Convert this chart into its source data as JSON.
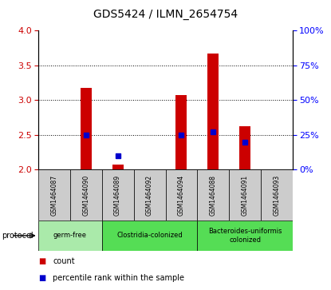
{
  "title": "GDS5424 / ILMN_2654754",
  "samples": [
    "GSM1464087",
    "GSM1464090",
    "GSM1464089",
    "GSM1464092",
    "GSM1464094",
    "GSM1464088",
    "GSM1464091",
    "GSM1464093"
  ],
  "counts": [
    null,
    3.17,
    2.07,
    null,
    3.07,
    3.67,
    2.62,
    null
  ],
  "percentile_ranks": [
    null,
    25,
    10,
    null,
    25,
    27,
    20,
    null
  ],
  "ylim": [
    2.0,
    4.0
  ],
  "yticks_left": [
    2.0,
    2.5,
    3.0,
    3.5,
    4.0
  ],
  "yticks_right": [
    0,
    25,
    50,
    75,
    100
  ],
  "bar_color": "#cc0000",
  "dot_color": "#0000cc",
  "protocol_groups": [
    {
      "label": "germ-free",
      "start": 0,
      "end": 1,
      "color": "#aaeaaa"
    },
    {
      "label": "Clostridia-colonized",
      "start": 2,
      "end": 4,
      "color": "#55dd55"
    },
    {
      "label": "Bacteroides-uniformis\ncolonized",
      "start": 5,
      "end": 7,
      "color": "#55dd55"
    }
  ],
  "sample_cell_color": "#cccccc",
  "grid_color": "#000000",
  "bar_width": 0.35,
  "legend_count_label": "count",
  "legend_pct_label": "percentile rank within the sample"
}
